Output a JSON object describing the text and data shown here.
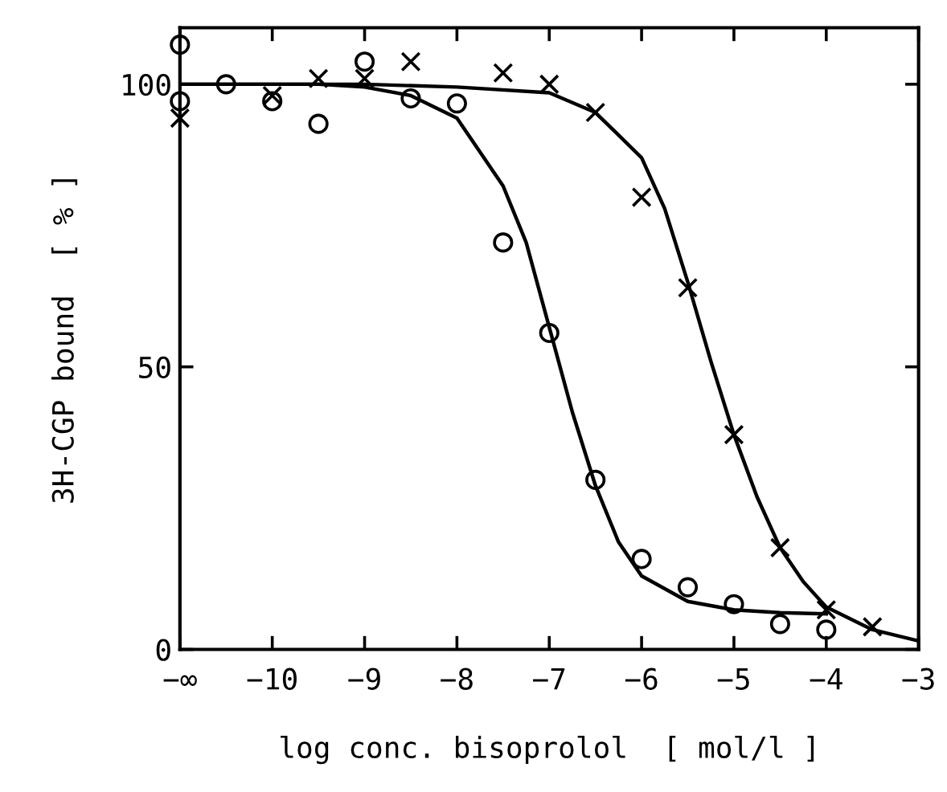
{
  "chart_data": {
    "type": "scatter",
    "xlabel": "log conc. bisoprolol  [ mol/l ]",
    "ylabel": "3H-CGP bound  [ % ]",
    "xlim": [
      -11,
      -3
    ],
    "ylim": [
      0,
      110
    ],
    "xticks": [
      {
        "value": -11,
        "label": "−∞"
      },
      {
        "value": -10,
        "label": "−10"
      },
      {
        "value": -9,
        "label": "−9"
      },
      {
        "value": -8,
        "label": "−8"
      },
      {
        "value": -7,
        "label": "−7"
      },
      {
        "value": -6,
        "label": "−6"
      },
      {
        "value": -5,
        "label": "−5"
      },
      {
        "value": -4,
        "label": "−4"
      },
      {
        "value": -3,
        "label": "−3"
      }
    ],
    "yticks": [
      0,
      50,
      100
    ],
    "grid": false,
    "legend": false,
    "series": [
      {
        "marker": "circle",
        "color": "#000000",
        "x": [
          -11,
          -11,
          -10.5,
          -10,
          -9.5,
          -9,
          -8.5,
          -8,
          -7.5,
          -7,
          -6.5,
          -6,
          -5.5,
          -5,
          -4.5,
          -4
        ],
        "values": [
          107,
          97,
          100,
          97,
          93,
          104,
          97.5,
          96.6,
          72,
          56,
          30,
          16,
          11,
          8,
          4.5,
          3.5
        ]
      },
      {
        "marker": "cross",
        "color": "#000000",
        "x": [
          -11,
          -10,
          -9.5,
          -9,
          -8.5,
          -7.5,
          -7,
          -6.5,
          -6,
          -5.5,
          -5,
          -4.5,
          -4,
          -3.5
        ],
        "values": [
          94,
          98,
          101,
          101,
          104,
          102,
          100,
          95,
          80,
          64,
          38,
          18,
          7,
          4
        ]
      },
      {
        "type": "line",
        "marker": "none",
        "line_style": "solid",
        "color": "#000000",
        "x": [
          -11,
          -9.5,
          -9,
          -8.5,
          -8,
          -7.5,
          -7.25,
          -7,
          -6.75,
          -6.5,
          -6.25,
          -6,
          -5.5,
          -5,
          -4.5,
          -4
        ],
        "values": [
          100,
          100,
          99.5,
          98,
          94,
          82,
          72,
          57,
          42,
          29,
          19,
          13,
          8.5,
          7,
          6.5,
          6.3
        ]
      },
      {
        "type": "line",
        "marker": "none",
        "line_style": "solid",
        "color": "#000000",
        "x": [
          -11,
          -9,
          -8,
          -7,
          -6.5,
          -6,
          -5.75,
          -5.5,
          -5.25,
          -5,
          -4.75,
          -4.5,
          -4.25,
          -4,
          -3.5,
          -3
        ],
        "values": [
          100,
          100,
          99.5,
          98.5,
          95,
          87,
          78,
          65,
          51,
          38,
          27,
          18,
          12,
          7.5,
          3.5,
          1.5
        ]
      }
    ]
  }
}
